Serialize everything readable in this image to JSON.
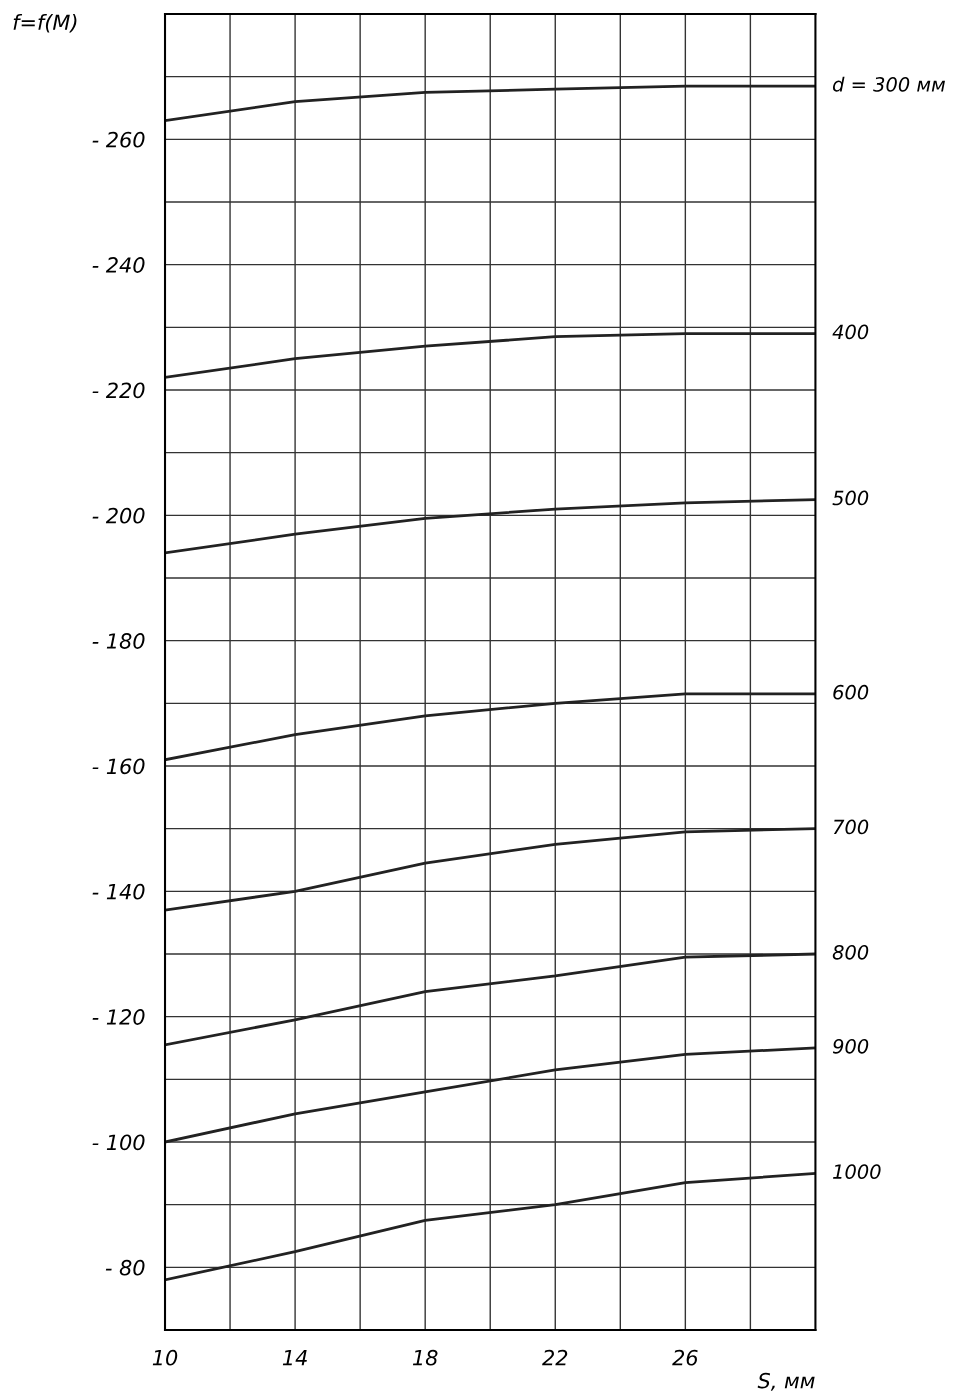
{
  "chart_data": {
    "type": "line",
    "xlabel": "S, мм",
    "ylabel": "f=f(M)",
    "x": [
      10,
      14,
      18,
      22,
      26,
      30
    ],
    "series": [
      {
        "name": "d = 300 мм",
        "color": "#222222",
        "values": [
          -263,
          -266,
          -267.5,
          -268,
          -268.5,
          -268.5
        ]
      },
      {
        "name": "400",
        "color": "#222222",
        "values": [
          -222,
          -225,
          -227,
          -228.5,
          -229,
          -229
        ]
      },
      {
        "name": "500",
        "color": "#222222",
        "values": [
          -194,
          -197,
          -199.5,
          -201,
          -202,
          -202.5
        ]
      },
      {
        "name": "600",
        "color": "#222222",
        "values": [
          -161,
          -165,
          -168,
          -170,
          -171.5,
          -171.5
        ]
      },
      {
        "name": "700",
        "color": "#222222",
        "values": [
          -137,
          -140,
          -144.5,
          -147.5,
          -149.5,
          -150
        ]
      },
      {
        "name": "800",
        "color": "#222222",
        "values": [
          -115.5,
          -119.5,
          -124,
          -126.5,
          -129.5,
          -130
        ]
      },
      {
        "name": "900",
        "color": "#222222",
        "values": [
          -100,
          -104.5,
          -108,
          -111.5,
          -114,
          -115
        ]
      },
      {
        "name": "1000",
        "color": "#222222",
        "values": [
          -78,
          -82.5,
          -87.5,
          -90,
          -93.5,
          -95
        ]
      }
    ],
    "xlim": [
      10,
      30
    ],
    "xticks": [
      10,
      {
        "value": 12,
        "label": null
      },
      14,
      {
        "value": 16,
        "label": null
      },
      18,
      {
        "value": 20,
        "label": null
      },
      22,
      {
        "value": 24,
        "label": null
      },
      26,
      {
        "value": 28,
        "label": null
      }
    ],
    "ylim": [
      -70,
      -280
    ],
    "yticks": [
      {
        "value": -70,
        "label": null
      },
      -80,
      {
        "value": -90,
        "label": null
      },
      -100,
      {
        "value": -110,
        "label": null
      },
      -120,
      {
        "value": -130,
        "label": null
      },
      -140,
      {
        "value": -150,
        "label": null
      },
      -160,
      {
        "value": -170,
        "label": null
      },
      -180,
      {
        "value": -190,
        "label": null
      },
      -200,
      {
        "value": -210,
        "label": null
      },
      -220,
      {
        "value": -230,
        "label": null
      },
      -240,
      {
        "value": -250,
        "label": null
      },
      -260,
      {
        "value": -270,
        "label": null
      }
    ],
    "grid": true,
    "marker": "none",
    "line_style": "solid",
    "legend": false
  }
}
